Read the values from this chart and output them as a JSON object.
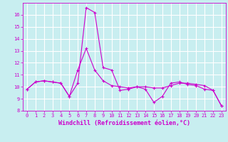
{
  "title": "",
  "xlabel": "Windchill (Refroidissement éolien,°C)",
  "ylabel": "",
  "background_color": "#c8eef0",
  "line_color": "#cc00cc",
  "grid_color": "#ffffff",
  "x_values": [
    0,
    1,
    2,
    3,
    4,
    5,
    6,
    7,
    8,
    9,
    10,
    11,
    12,
    13,
    14,
    15,
    16,
    17,
    18,
    19,
    20,
    21,
    22,
    23
  ],
  "y_values": [
    9.8,
    10.4,
    10.5,
    10.4,
    10.3,
    9.2,
    10.3,
    16.6,
    16.2,
    11.6,
    11.4,
    9.7,
    9.8,
    10.0,
    9.8,
    8.7,
    9.2,
    10.3,
    10.4,
    10.2,
    10.1,
    9.8,
    9.7,
    8.4
  ],
  "y2_values": [
    9.8,
    10.4,
    10.5,
    10.4,
    10.3,
    9.2,
    11.4,
    13.2,
    11.4,
    10.5,
    10.1,
    10.0,
    9.9,
    10.0,
    10.0,
    9.9,
    9.9,
    10.1,
    10.3,
    10.3,
    10.2,
    10.1,
    9.7,
    8.4
  ],
  "ylim": [
    8,
    17
  ],
  "xlim": [
    -0.5,
    23.5
  ],
  "yticks": [
    8,
    9,
    10,
    11,
    12,
    13,
    14,
    15,
    16
  ],
  "xticks": [
    0,
    1,
    2,
    3,
    4,
    5,
    6,
    7,
    8,
    9,
    10,
    11,
    12,
    13,
    14,
    15,
    16,
    17,
    18,
    19,
    20,
    21,
    22,
    23
  ],
  "tick_fontsize": 5.0,
  "label_fontsize": 6.0
}
